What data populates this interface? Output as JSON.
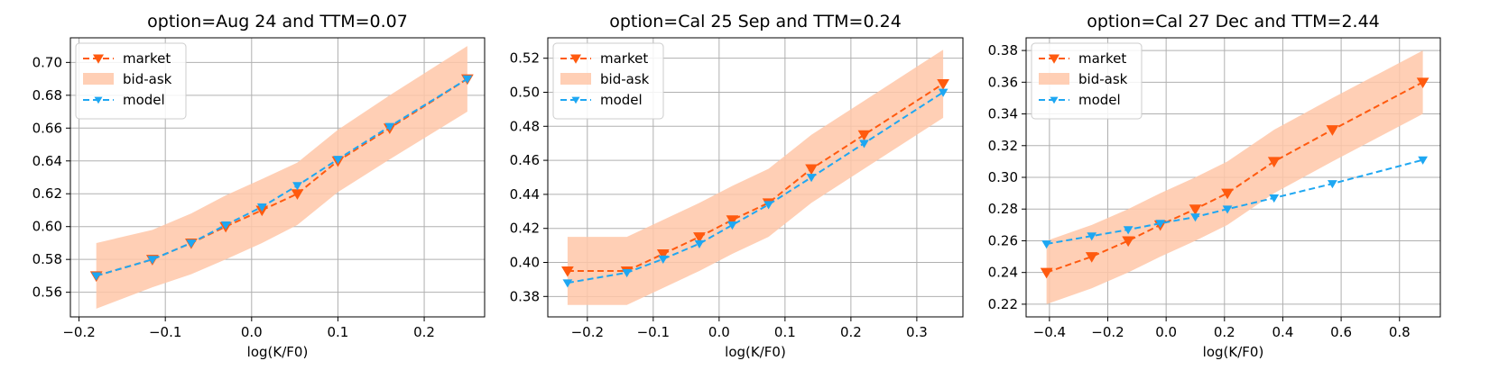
{
  "colors": {
    "market": "#ff5a0f",
    "band": "#ffc7a8",
    "model": "#1ea7f2"
  },
  "chart_data": [
    {
      "type": "line",
      "title": "option=Aug 24 and TTM=0.07",
      "xlabel": "log(K/F0)",
      "xlim": [
        -0.21,
        0.27
      ],
      "ylim": [
        0.545,
        0.715
      ],
      "xticks": [
        -0.2,
        -0.1,
        0.0,
        0.1,
        0.2
      ],
      "xtick_labels": [
        "−0.2",
        "−0.1",
        "0.0",
        "0.1",
        "0.2"
      ],
      "yticks": [
        0.56,
        0.58,
        0.6,
        0.62,
        0.64,
        0.66,
        0.68,
        0.7
      ],
      "ytick_labels": [
        "0.56",
        "0.58",
        "0.60",
        "0.62",
        "0.64",
        "0.66",
        "0.68",
        "0.70"
      ],
      "legend": [
        "market",
        "bid-ask",
        "model"
      ],
      "x": [
        -0.18,
        -0.115,
        -0.07,
        -0.03,
        0.012,
        0.053,
        0.1,
        0.16,
        0.25
      ],
      "market": [
        0.57,
        0.58,
        0.59,
        0.6,
        0.61,
        0.62,
        0.64,
        0.66,
        0.69
      ],
      "bid": [
        0.55,
        0.563,
        0.571,
        0.58,
        0.59,
        0.601,
        0.621,
        0.641,
        0.67
      ],
      "ask": [
        0.59,
        0.598,
        0.608,
        0.619,
        0.629,
        0.639,
        0.659,
        0.68,
        0.71
      ],
      "model": [
        0.57,
        0.58,
        0.59,
        0.601,
        0.612,
        0.625,
        0.641,
        0.661,
        0.69
      ]
    },
    {
      "type": "line",
      "title": "option=Cal 25 Sep and TTM=0.24",
      "xlabel": "log(K/F0)",
      "xlim": [
        -0.26,
        0.37
      ],
      "ylim": [
        0.368,
        0.532
      ],
      "xticks": [
        -0.2,
        -0.1,
        0.0,
        0.1,
        0.2,
        0.3
      ],
      "xtick_labels": [
        "−0.2",
        "−0.1",
        "0.0",
        "0.1",
        "0.2",
        "0.3"
      ],
      "yticks": [
        0.38,
        0.4,
        0.42,
        0.44,
        0.46,
        0.48,
        0.5,
        0.52
      ],
      "ytick_labels": [
        "0.38",
        "0.40",
        "0.42",
        "0.44",
        "0.46",
        "0.48",
        "0.50",
        "0.52"
      ],
      "legend": [
        "market",
        "bid-ask",
        "model"
      ],
      "x": [
        -0.23,
        -0.14,
        -0.085,
        -0.03,
        0.02,
        0.075,
        0.14,
        0.22,
        0.34
      ],
      "market": [
        0.395,
        0.395,
        0.405,
        0.415,
        0.425,
        0.435,
        0.455,
        0.475,
        0.505
      ],
      "bid": [
        0.375,
        0.375,
        0.385,
        0.395,
        0.405,
        0.415,
        0.435,
        0.455,
        0.485
      ],
      "ask": [
        0.415,
        0.415,
        0.425,
        0.435,
        0.445,
        0.455,
        0.475,
        0.495,
        0.525
      ],
      "model": [
        0.388,
        0.394,
        0.402,
        0.411,
        0.422,
        0.434,
        0.45,
        0.47,
        0.5
      ]
    },
    {
      "type": "line",
      "title": "option=Cal 27 Dec and TTM=2.44",
      "xlabel": "log(K/F0)",
      "xlim": [
        -0.48,
        0.94
      ],
      "ylim": [
        0.212,
        0.388
      ],
      "xticks": [
        -0.4,
        -0.2,
        0.0,
        0.2,
        0.4,
        0.6,
        0.8
      ],
      "xtick_labels": [
        "−0.4",
        "−0.2",
        "0.0",
        "0.2",
        "0.4",
        "0.6",
        "0.8"
      ],
      "yticks": [
        0.22,
        0.24,
        0.26,
        0.28,
        0.3,
        0.32,
        0.34,
        0.36,
        0.38
      ],
      "ytick_labels": [
        "0.22",
        "0.24",
        "0.26",
        "0.28",
        "0.30",
        "0.32",
        "0.34",
        "0.36",
        "0.38"
      ],
      "legend": [
        "market",
        "bid-ask",
        "model"
      ],
      "x": [
        -0.41,
        -0.255,
        -0.13,
        -0.02,
        0.1,
        0.21,
        0.37,
        0.57,
        0.88
      ],
      "market": [
        0.24,
        0.25,
        0.26,
        0.27,
        0.28,
        0.29,
        0.31,
        0.33,
        0.36
      ],
      "bid": [
        0.22,
        0.23,
        0.24,
        0.25,
        0.26,
        0.27,
        0.29,
        0.31,
        0.34
      ],
      "ask": [
        0.26,
        0.27,
        0.28,
        0.29,
        0.3,
        0.31,
        0.33,
        0.35,
        0.38
      ],
      "model": [
        0.258,
        0.263,
        0.267,
        0.271,
        0.275,
        0.28,
        0.287,
        0.296,
        0.311
      ]
    }
  ]
}
